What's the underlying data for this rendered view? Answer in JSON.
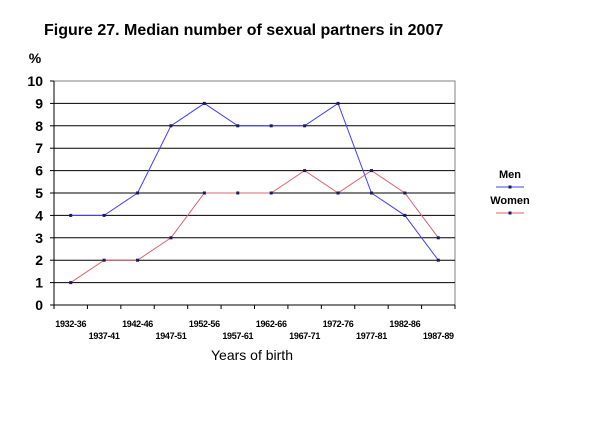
{
  "chart_data": {
    "type": "line",
    "title": "Figure 27. Median number of sexual partners in 2007",
    "ylabel": "%",
    "xlabel": "Years of birth",
    "categories": [
      "1932-36",
      "1937-41",
      "1942-46",
      "1947-51",
      "1952-56",
      "1957-61",
      "1962-66",
      "1967-71",
      "1972-76",
      "1977-81",
      "1982-86",
      "1987-89"
    ],
    "y_ticks": [
      "0",
      "1",
      "2",
      "3",
      "4",
      "5",
      "6",
      "7",
      "8",
      "9",
      "10"
    ],
    "ylim": [
      0,
      10
    ],
    "grid": true,
    "legend_position": "right",
    "series": [
      {
        "name": "Men",
        "color": "#4040ff",
        "values": [
          4,
          4,
          5,
          8,
          9,
          8,
          8,
          8,
          9,
          5,
          4,
          2
        ]
      },
      {
        "name": "Women",
        "color": "#e06070",
        "values": [
          1,
          2,
          2,
          3,
          5,
          5,
          5,
          6,
          5,
          6,
          5,
          3
        ]
      }
    ]
  }
}
